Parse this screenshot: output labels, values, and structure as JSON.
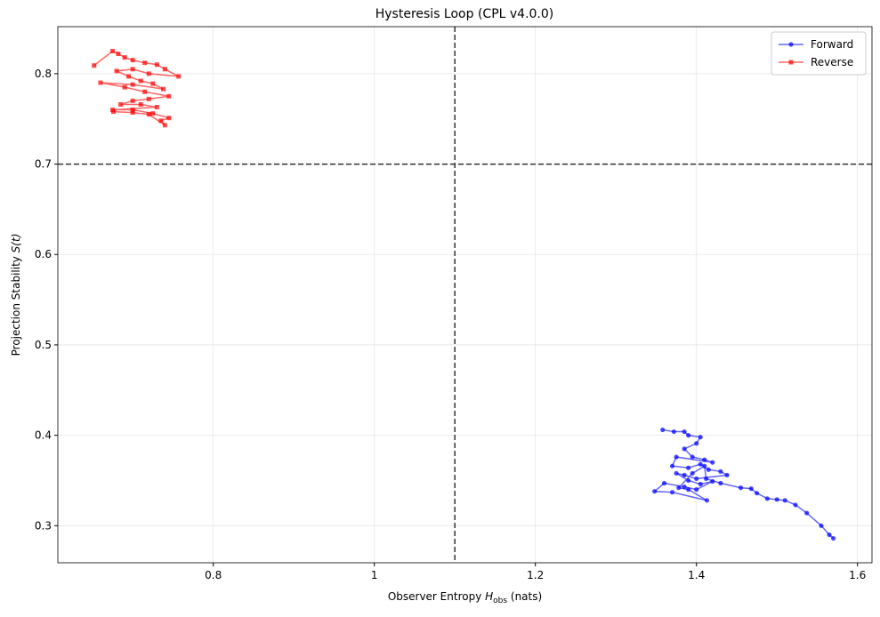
{
  "chart_data": {
    "type": "line",
    "title": "Hysteresis Loop (CPL v4.0.0)",
    "xlabel": [
      "Observer Entropy ",
      "H",
      "obs",
      " (nats)"
    ],
    "ylabel": [
      "Projection Stability ",
      "S(t)"
    ],
    "xlim": [
      0.607,
      1.618
    ],
    "ylim": [
      0.259,
      0.852
    ],
    "xticks": [
      0.8,
      1.0,
      1.2,
      1.4,
      1.6
    ],
    "yticks": [
      0.3,
      0.4,
      0.5,
      0.6,
      0.7,
      0.8
    ],
    "grid": true,
    "legend": "upper right",
    "vlines": [
      1.1
    ],
    "hlines": [
      0.7
    ],
    "series": [
      {
        "name": "Forward",
        "color": "#0000ff",
        "marker": "circle",
        "x": [
          1.358,
          1.372,
          1.385,
          1.39,
          1.405,
          1.4,
          1.385,
          1.395,
          1.41,
          1.42,
          1.375,
          1.37,
          1.39,
          1.405,
          1.415,
          1.43,
          1.438,
          1.4,
          1.385,
          1.375,
          1.39,
          1.405,
          1.42,
          1.4,
          1.385,
          1.36,
          1.348,
          1.37,
          1.413,
          1.39,
          1.378,
          1.395,
          1.41,
          1.412,
          1.43,
          1.455,
          1.468,
          1.475,
          1.488,
          1.5,
          1.51,
          1.523,
          1.537,
          1.555,
          1.565,
          1.57
        ],
        "values": [
          0.406,
          0.404,
          0.404,
          0.4,
          0.398,
          0.391,
          0.385,
          0.376,
          0.373,
          0.37,
          0.376,
          0.366,
          0.364,
          0.368,
          0.362,
          0.36,
          0.356,
          0.352,
          0.356,
          0.358,
          0.35,
          0.346,
          0.349,
          0.34,
          0.343,
          0.347,
          0.338,
          0.337,
          0.328,
          0.34,
          0.342,
          0.358,
          0.366,
          0.352,
          0.347,
          0.342,
          0.341,
          0.336,
          0.33,
          0.329,
          0.328,
          0.323,
          0.314,
          0.3,
          0.29,
          0.286
        ]
      },
      {
        "name": "Reverse",
        "color": "#ff0000",
        "marker": "square",
        "x": [
          0.652,
          0.675,
          0.682,
          0.69,
          0.7,
          0.715,
          0.73,
          0.74,
          0.757,
          0.72,
          0.7,
          0.68,
          0.695,
          0.71,
          0.725,
          0.738,
          0.7,
          0.66,
          0.69,
          0.715,
          0.745,
          0.72,
          0.7,
          0.685,
          0.71,
          0.73,
          0.675,
          0.7,
          0.725,
          0.745,
          0.735,
          0.74,
          0.72,
          0.7,
          0.676
        ],
        "values": [
          0.809,
          0.825,
          0.822,
          0.818,
          0.815,
          0.812,
          0.81,
          0.805,
          0.797,
          0.8,
          0.805,
          0.803,
          0.797,
          0.792,
          0.789,
          0.783,
          0.788,
          0.79,
          0.785,
          0.78,
          0.775,
          0.772,
          0.77,
          0.766,
          0.766,
          0.763,
          0.76,
          0.76,
          0.756,
          0.751,
          0.748,
          0.743,
          0.755,
          0.757,
          0.758
        ]
      }
    ]
  }
}
